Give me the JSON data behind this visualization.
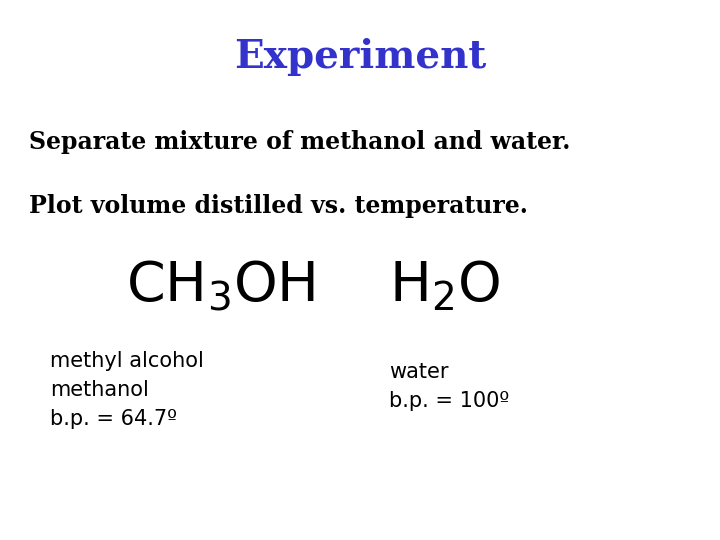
{
  "title": "Experiment",
  "title_color": "#3333cc",
  "title_fontsize": 28,
  "subtitle_line1": "Separate mixture of methanol and water.",
  "subtitle_line2": "Plot volume distilled vs. temperature.",
  "subtitle_fontsize": 17,
  "subtitle_color": "#000000",
  "formula_fontsize": 40,
  "formula_color": "#000000",
  "label_left_line1": "methyl alcohol",
  "label_left_line2": "methanol",
  "label_left_line3": "b.p. = 64.7º",
  "label_right_line1": "water",
  "label_right_line2": "b.p. = 100º",
  "label_fontsize": 15,
  "label_color": "#000000",
  "background_color": "#ffffff",
  "fig_width": 7.2,
  "fig_height": 5.4,
  "fig_dpi": 100
}
